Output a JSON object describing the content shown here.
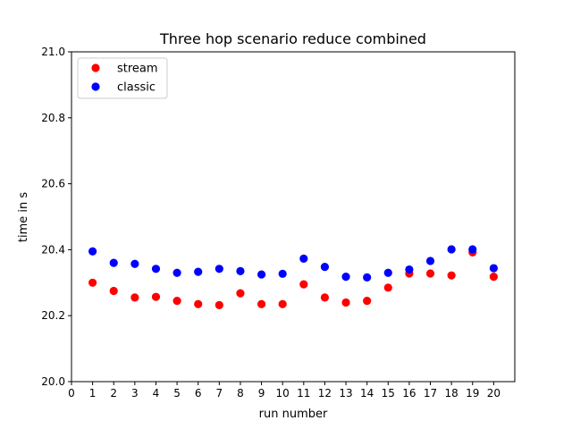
{
  "chart_data": {
    "type": "scatter",
    "title": "Three hop scenario reduce combined",
    "xlabel": "run number",
    "ylabel": "time in s",
    "xlim": [
      0,
      21
    ],
    "ylim": [
      20.0,
      21.0
    ],
    "xticks": [
      0,
      1,
      2,
      3,
      4,
      5,
      6,
      7,
      8,
      9,
      10,
      11,
      12,
      13,
      14,
      15,
      16,
      17,
      18,
      19,
      20
    ],
    "yticks": [
      20.0,
      20.2,
      20.4,
      20.6,
      20.8,
      21.0
    ],
    "ytick_labels": [
      "20.0",
      "20.2",
      "20.4",
      "20.6",
      "20.8",
      "21.0"
    ],
    "grid": false,
    "legend_position": "top-left",
    "x": [
      1,
      2,
      3,
      4,
      5,
      6,
      7,
      8,
      9,
      10,
      11,
      12,
      13,
      14,
      15,
      16,
      17,
      18,
      19,
      20
    ],
    "series": [
      {
        "name": "stream",
        "color": "#ff0000",
        "values": [
          20.3,
          20.275,
          20.255,
          20.257,
          20.245,
          20.235,
          20.232,
          20.268,
          20.235,
          20.235,
          20.295,
          20.255,
          20.24,
          20.245,
          20.285,
          20.328,
          20.328,
          20.322,
          20.392,
          20.318
        ]
      },
      {
        "name": "classic",
        "color": "#0000ff",
        "values": [
          20.395,
          20.36,
          20.357,
          20.342,
          20.33,
          20.333,
          20.342,
          20.335,
          20.325,
          20.327,
          20.373,
          20.348,
          20.318,
          20.316,
          20.33,
          20.34,
          20.366,
          20.401,
          20.401,
          20.344
        ]
      }
    ]
  }
}
